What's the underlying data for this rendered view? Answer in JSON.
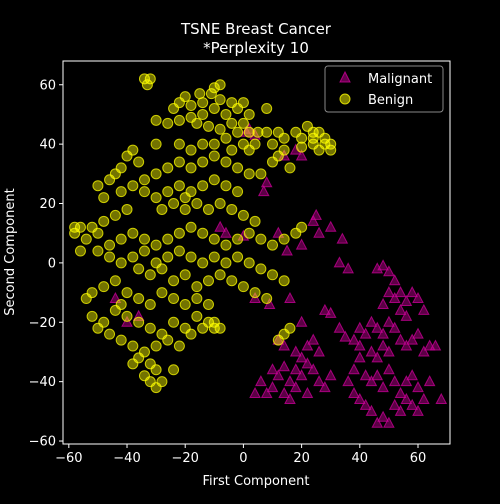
{
  "chart_data": {
    "type": "scatter",
    "title": "TSNE Breast Cancer",
    "subtitle": "*Perplexity 10",
    "xlabel": "First Component",
    "ylabel": "Second Component",
    "xlim": [
      -62,
      71
    ],
    "ylim": [
      -61,
      68
    ],
    "xticks": [
      -60,
      -40,
      -20,
      0,
      20,
      40,
      60
    ],
    "yticks": [
      -60,
      -40,
      -20,
      0,
      20,
      40,
      60
    ],
    "grid": false,
    "legend_position": "top-right",
    "series": [
      {
        "name": "Malignant",
        "marker": "triangle",
        "color": "#cc0099",
        "points": [
          [
            -8,
            12
          ],
          [
            -6,
            10
          ],
          [
            0,
            9
          ],
          [
            1,
            44
          ],
          [
            2,
            45
          ],
          [
            4,
            43
          ],
          [
            8,
            27
          ],
          [
            7,
            24
          ],
          [
            12,
            10
          ],
          [
            14,
            36
          ],
          [
            18,
            38
          ],
          [
            20,
            36
          ],
          [
            15,
            4
          ],
          [
            20,
            6
          ],
          [
            24,
            14
          ],
          [
            25,
            16
          ],
          [
            26,
            10
          ],
          [
            30,
            12
          ],
          [
            34,
            8
          ],
          [
            33,
            0
          ],
          [
            36,
            -2
          ],
          [
            4,
            -12
          ],
          [
            9,
            -14
          ],
          [
            16,
            -12
          ],
          [
            20,
            -20
          ],
          [
            28,
            -16
          ],
          [
            30,
            -17
          ],
          [
            33,
            -22
          ],
          [
            40,
            -22
          ],
          [
            35,
            -25
          ],
          [
            38,
            -26
          ],
          [
            12,
            -26
          ],
          [
            14,
            -28
          ],
          [
            18,
            -30
          ],
          [
            22,
            -28
          ],
          [
            24,
            -26
          ],
          [
            26,
            -30
          ],
          [
            10,
            -36
          ],
          [
            12,
            -38
          ],
          [
            14,
            -35
          ],
          [
            16,
            -40
          ],
          [
            18,
            -42
          ],
          [
            20,
            -38
          ],
          [
            22,
            -44
          ],
          [
            24,
            -36
          ],
          [
            26,
            -40
          ],
          [
            28,
            -42
          ],
          [
            30,
            -38
          ],
          [
            6,
            -40
          ],
          [
            8,
            -44
          ],
          [
            10,
            -42
          ],
          [
            4,
            -44
          ],
          [
            14,
            -44
          ],
          [
            16,
            -46
          ],
          [
            18,
            -36
          ],
          [
            20,
            -32
          ],
          [
            22,
            -34
          ],
          [
            46,
            -2
          ],
          [
            48,
            -1
          ],
          [
            50,
            -3
          ],
          [
            52,
            -6
          ],
          [
            50,
            -10
          ],
          [
            48,
            -14
          ],
          [
            52,
            -12
          ],
          [
            54,
            -10
          ],
          [
            56,
            -13
          ],
          [
            58,
            -10
          ],
          [
            60,
            -12
          ],
          [
            62,
            -16
          ],
          [
            56,
            -18
          ],
          [
            54,
            -16
          ],
          [
            50,
            -20
          ],
          [
            46,
            -22
          ],
          [
            48,
            -24
          ],
          [
            52,
            -22
          ],
          [
            44,
            -20
          ],
          [
            42,
            -24
          ],
          [
            40,
            -28
          ],
          [
            44,
            -30
          ],
          [
            46,
            -32
          ],
          [
            48,
            -28
          ],
          [
            50,
            -30
          ],
          [
            54,
            -26
          ],
          [
            56,
            -28
          ],
          [
            58,
            -26
          ],
          [
            60,
            -24
          ],
          [
            62,
            -30
          ],
          [
            64,
            -28
          ],
          [
            66,
            -28
          ],
          [
            40,
            -32
          ],
          [
            38,
            -36
          ],
          [
            42,
            -38
          ],
          [
            44,
            -40
          ],
          [
            46,
            -38
          ],
          [
            48,
            -42
          ],
          [
            50,
            -36
          ],
          [
            52,
            -40
          ],
          [
            54,
            -44
          ],
          [
            56,
            -40
          ],
          [
            58,
            -38
          ],
          [
            60,
            -42
          ],
          [
            62,
            -46
          ],
          [
            36,
            -40
          ],
          [
            38,
            -44
          ],
          [
            40,
            -46
          ],
          [
            42,
            -48
          ],
          [
            44,
            -50
          ],
          [
            46,
            -54
          ],
          [
            48,
            -52
          ],
          [
            50,
            -54
          ],
          [
            52,
            -48
          ],
          [
            54,
            -50
          ],
          [
            56,
            -46
          ],
          [
            58,
            -48
          ],
          [
            60,
            -50
          ],
          [
            64,
            -40
          ],
          [
            68,
            -46
          ],
          [
            -40,
            -20
          ],
          [
            -36,
            -18
          ],
          [
            -44,
            -12
          ]
        ]
      },
      {
        "name": "Benign",
        "marker": "circle",
        "color": "#ffff00",
        "points": [
          [
            -34,
            62
          ],
          [
            -32,
            62
          ],
          [
            -33,
            60
          ],
          [
            -8,
            60
          ],
          [
            -10,
            59
          ],
          [
            -11,
            57
          ],
          [
            -15,
            57
          ],
          [
            -20,
            56
          ],
          [
            -22,
            54
          ],
          [
            -18,
            53
          ],
          [
            -24,
            52
          ],
          [
            -14,
            54
          ],
          [
            -8,
            55
          ],
          [
            -10,
            52
          ],
          [
            -4,
            54
          ],
          [
            -2,
            52
          ],
          [
            0,
            54
          ],
          [
            2,
            50
          ],
          [
            -6,
            50
          ],
          [
            -14,
            50
          ],
          [
            -18,
            49
          ],
          [
            -22,
            48
          ],
          [
            -26,
            47
          ],
          [
            -30,
            48
          ],
          [
            8,
            52
          ],
          [
            -16,
            47
          ],
          [
            -12,
            46
          ],
          [
            -8,
            45
          ],
          [
            -4,
            47
          ],
          [
            -2,
            44
          ],
          [
            0,
            47
          ],
          [
            2,
            44
          ],
          [
            5,
            44
          ],
          [
            8,
            44
          ],
          [
            12,
            44
          ],
          [
            14,
            42
          ],
          [
            18,
            44
          ],
          [
            20,
            42
          ],
          [
            24,
            42
          ],
          [
            26,
            44
          ],
          [
            28,
            40
          ],
          [
            30,
            38
          ],
          [
            28,
            42
          ],
          [
            -30,
            40
          ],
          [
            -22,
            40
          ],
          [
            -18,
            38
          ],
          [
            -14,
            40
          ],
          [
            -10,
            40
          ],
          [
            -6,
            42
          ],
          [
            -4,
            38
          ],
          [
            0,
            40
          ],
          [
            2,
            38
          ],
          [
            4,
            40
          ],
          [
            10,
            40
          ],
          [
            14,
            38
          ],
          [
            20,
            39
          ],
          [
            24,
            40
          ],
          [
            26,
            38
          ],
          [
            -38,
            38
          ],
          [
            -36,
            34
          ],
          [
            -40,
            36
          ],
          [
            -42,
            32
          ],
          [
            -44,
            30
          ],
          [
            -46,
            28
          ],
          [
            -50,
            26
          ],
          [
            -48,
            22
          ],
          [
            -42,
            24
          ],
          [
            -38,
            26
          ],
          [
            -34,
            28
          ],
          [
            -30,
            30
          ],
          [
            -26,
            32
          ],
          [
            -22,
            34
          ],
          [
            -18,
            32
          ],
          [
            -14,
            34
          ],
          [
            -10,
            36
          ],
          [
            -6,
            34
          ],
          [
            -2,
            32
          ],
          [
            2,
            30
          ],
          [
            6,
            30
          ],
          [
            10,
            34
          ],
          [
            12,
            36
          ],
          [
            16,
            32
          ],
          [
            -34,
            24
          ],
          [
            -30,
            22
          ],
          [
            -26,
            24
          ],
          [
            -22,
            26
          ],
          [
            -18,
            24
          ],
          [
            -14,
            26
          ],
          [
            -10,
            28
          ],
          [
            -6,
            26
          ],
          [
            -2,
            24
          ],
          [
            -28,
            18
          ],
          [
            -24,
            20
          ],
          [
            -20,
            22
          ],
          [
            -16,
            20
          ],
          [
            -12,
            18
          ],
          [
            -8,
            20
          ],
          [
            -4,
            18
          ],
          [
            0,
            16
          ],
          [
            4,
            14
          ],
          [
            -40,
            18
          ],
          [
            -44,
            16
          ],
          [
            -48,
            14
          ],
          [
            -52,
            12
          ],
          [
            -56,
            12
          ],
          [
            -58,
            10
          ],
          [
            -54,
            8
          ],
          [
            -50,
            10
          ],
          [
            -46,
            6
          ],
          [
            -42,
            8
          ],
          [
            -38,
            10
          ],
          [
            -34,
            8
          ],
          [
            -30,
            6
          ],
          [
            -26,
            8
          ],
          [
            -22,
            10
          ],
          [
            -18,
            12
          ],
          [
            -14,
            10
          ],
          [
            -10,
            8
          ],
          [
            -6,
            6
          ],
          [
            -2,
            8
          ],
          [
            2,
            10
          ],
          [
            6,
            8
          ],
          [
            10,
            6
          ],
          [
            14,
            8
          ],
          [
            18,
            10
          ],
          [
            20,
            12
          ],
          [
            -50,
            4
          ],
          [
            -46,
            2
          ],
          [
            -42,
            0
          ],
          [
            -38,
            2
          ],
          [
            -34,
            4
          ],
          [
            -30,
            0
          ],
          [
            -26,
            2
          ],
          [
            -22,
            4
          ],
          [
            -18,
            2
          ],
          [
            -14,
            0
          ],
          [
            -10,
            2
          ],
          [
            -6,
            0
          ],
          [
            -2,
            2
          ],
          [
            2,
            0
          ],
          [
            6,
            -2
          ],
          [
            10,
            -4
          ],
          [
            14,
            -6
          ],
          [
            -36,
            -2
          ],
          [
            -32,
            -4
          ],
          [
            -28,
            -2
          ],
          [
            -24,
            -6
          ],
          [
            -20,
            -4
          ],
          [
            -16,
            -8
          ],
          [
            -12,
            -6
          ],
          [
            -8,
            -4
          ],
          [
            -4,
            -6
          ],
          [
            0,
            -8
          ],
          [
            4,
            -10
          ],
          [
            8,
            -12
          ],
          [
            -52,
            -10
          ],
          [
            -48,
            -8
          ],
          [
            -44,
            -6
          ],
          [
            -40,
            -10
          ],
          [
            -36,
            -12
          ],
          [
            -32,
            -14
          ],
          [
            -28,
            -10
          ],
          [
            -24,
            -12
          ],
          [
            -20,
            -14
          ],
          [
            -16,
            -12
          ],
          [
            -12,
            -14
          ],
          [
            -52,
            -18
          ],
          [
            -48,
            -20
          ],
          [
            -44,
            -16
          ],
          [
            -40,
            -18
          ],
          [
            -36,
            -20
          ],
          [
            -32,
            -22
          ],
          [
            -28,
            -24
          ],
          [
            -24,
            -20
          ],
          [
            -20,
            -22
          ],
          [
            -16,
            -18
          ],
          [
            -12,
            -20
          ],
          [
            -50,
            -22
          ],
          [
            -46,
            -24
          ],
          [
            -42,
            -26
          ],
          [
            -38,
            -28
          ],
          [
            -34,
            -30
          ],
          [
            -30,
            -28
          ],
          [
            -26,
            -26
          ],
          [
            -22,
            -28
          ],
          [
            -18,
            -24
          ],
          [
            -14,
            -22
          ],
          [
            -10,
            -22
          ],
          [
            -36,
            -32
          ],
          [
            -32,
            -34
          ],
          [
            -30,
            -36
          ],
          [
            -34,
            -38
          ],
          [
            -28,
            -40
          ],
          [
            -32,
            -40
          ],
          [
            -38,
            -34
          ],
          [
            -24,
            -36
          ],
          [
            -8,
            -22
          ],
          [
            -10,
            -20
          ],
          [
            12,
            -26
          ],
          [
            14,
            -24
          ],
          [
            16,
            -22
          ],
          [
            -56,
            4
          ],
          [
            -58,
            12
          ],
          [
            -54,
            -12
          ],
          [
            -42,
            -14
          ],
          [
            -30,
            -42
          ],
          [
            -20,
            18
          ],
          [
            22,
            46
          ],
          [
            24,
            44
          ],
          [
            30,
            40
          ]
        ]
      }
    ]
  }
}
